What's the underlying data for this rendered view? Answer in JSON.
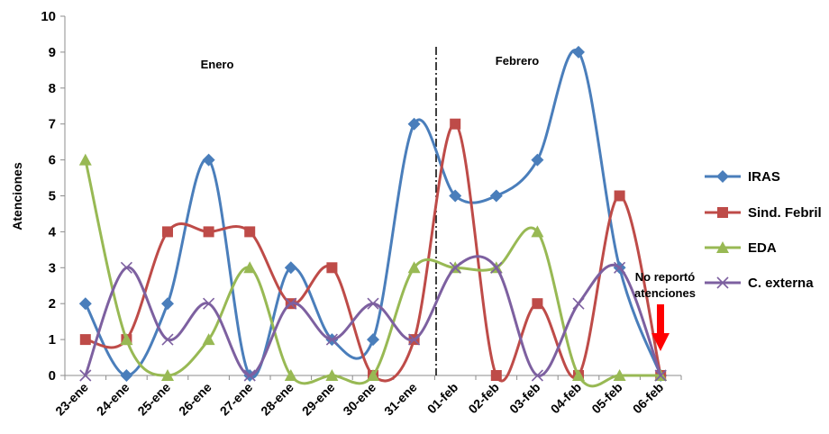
{
  "chart_data": {
    "type": "line",
    "title": "",
    "xlabel": "",
    "ylabel": "Atenciones",
    "ylim": [
      0,
      10
    ],
    "yticks": [
      "0",
      "1",
      "2",
      "3",
      "4",
      "5",
      "6",
      "7",
      "8",
      "9",
      "10"
    ],
    "categories": [
      "23-ene",
      "24-ene",
      "25-ene",
      "26-ene",
      "27-ene",
      "28-ene",
      "29-ene",
      "30-ene",
      "31-ene",
      "01-feb",
      "02-feb",
      "03-feb",
      "04-feb",
      "05-feb",
      "06-feb"
    ],
    "series": [
      {
        "name": "IRAS",
        "color": "#4a7ebb",
        "marker": "diamond",
        "values": [
          2,
          0,
          2,
          6,
          0,
          3,
          1,
          1,
          7,
          5,
          5,
          6,
          9,
          3,
          0
        ]
      },
      {
        "name": "Sind. Febril",
        "color": "#be4b48",
        "marker": "square",
        "values": [
          1,
          1,
          4,
          4,
          4,
          2,
          3,
          0,
          1,
          7,
          0,
          2,
          0,
          5,
          0
        ]
      },
      {
        "name": "EDA",
        "color": "#98b954",
        "marker": "triangle",
        "values": [
          6,
          1,
          0,
          1,
          3,
          0,
          0,
          0,
          3,
          3,
          3,
          4,
          0,
          0,
          0
        ]
      },
      {
        "name": "C. externa",
        "color": "#7d60a0",
        "marker": "x",
        "values": [
          0,
          3,
          1,
          2,
          0,
          2,
          1,
          2,
          1,
          3,
          3,
          0,
          2,
          3,
          0
        ]
      }
    ],
    "annotations": {
      "enero": "Enero",
      "febrero": "Febrero",
      "no_report_line1": "No reportó",
      "no_report_line2": "atenciones"
    },
    "legend_position": "right",
    "grid": false
  }
}
